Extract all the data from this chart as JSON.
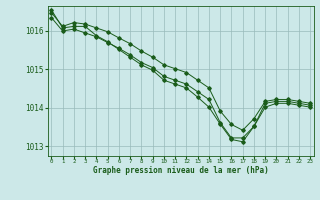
{
  "background_color": "#cce8e8",
  "plot_bg_color": "#cce8e8",
  "grid_color": "#99bbbb",
  "line_color": "#1a5c1a",
  "marker_color": "#1a5c1a",
  "xlabel": "Graphe pression niveau de la mer (hPa)",
  "xlabel_color": "#1a5c1a",
  "tick_color": "#1a5c1a",
  "ylim": [
    1012.75,
    1016.65
  ],
  "xlim": [
    -0.3,
    23.3
  ],
  "yticks": [
    1013,
    1014,
    1015,
    1016
  ],
  "xticks": [
    0,
    1,
    2,
    3,
    4,
    5,
    6,
    7,
    8,
    9,
    10,
    11,
    12,
    13,
    14,
    15,
    16,
    17,
    18,
    19,
    20,
    21,
    22,
    23
  ],
  "series1": [
    1016.35,
    1016.0,
    1016.05,
    1015.95,
    1015.85,
    1015.7,
    1015.55,
    1015.38,
    1015.18,
    1015.05,
    1014.82,
    1014.72,
    1014.62,
    1014.42,
    1014.22,
    1013.62,
    1013.22,
    1013.22,
    1013.52,
    1014.12,
    1014.17,
    1014.17,
    1014.12,
    1014.07
  ],
  "series2": [
    1016.55,
    1016.08,
    1016.12,
    1016.12,
    1015.88,
    1015.72,
    1015.52,
    1015.32,
    1015.12,
    1014.98,
    1014.72,
    1014.62,
    1014.52,
    1014.28,
    1014.02,
    1013.58,
    1013.18,
    1013.12,
    1013.52,
    1014.02,
    1014.12,
    1014.12,
    1014.07,
    1014.02
  ],
  "series3": [
    1016.48,
    1016.12,
    1016.22,
    1016.18,
    1016.08,
    1015.98,
    1015.82,
    1015.67,
    1015.48,
    1015.32,
    1015.12,
    1015.02,
    1014.92,
    1014.72,
    1014.52,
    1013.92,
    1013.57,
    1013.42,
    1013.72,
    1014.17,
    1014.22,
    1014.22,
    1014.17,
    1014.12
  ]
}
